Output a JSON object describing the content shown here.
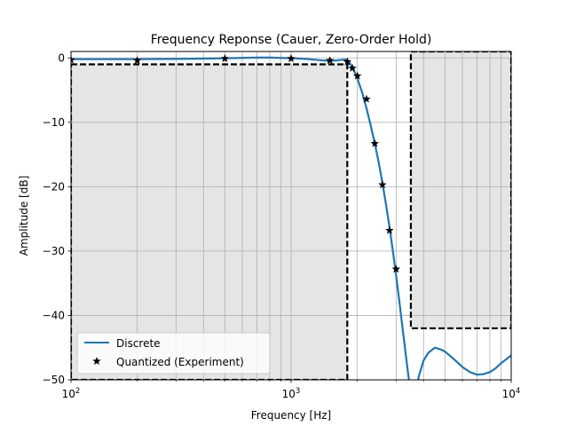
{
  "chart_data": {
    "type": "line",
    "title": "Frequency Reponse (Cauer, Zero-Order Hold)",
    "xlabel": "Frequency [Hz]",
    "ylabel": "Amplitude [dB]",
    "xscale": "log",
    "xlim": [
      100,
      10000
    ],
    "ylim": [
      -50,
      1
    ],
    "grid": true,
    "x_ticks": [
      {
        "value": 100,
        "base": "10",
        "exp": "2"
      },
      {
        "value": 1000,
        "base": "10",
        "exp": "3"
      },
      {
        "value": 10000,
        "base": "10",
        "exp": "4"
      }
    ],
    "y_ticks": [
      {
        "value": 0,
        "label": "0"
      },
      {
        "value": -10,
        "label": "−10"
      },
      {
        "value": -20,
        "label": "−20"
      },
      {
        "value": -30,
        "label": "−30"
      },
      {
        "value": -40,
        "label": "−40"
      },
      {
        "value": -50,
        "label": "−50"
      }
    ],
    "legend_position": "lower-left",
    "specification_regions": [
      {
        "x_range": [
          100,
          1800
        ],
        "y_top": -1,
        "y_bottom": -50
      },
      {
        "x_range": [
          3500,
          10000
        ],
        "y_top": 1,
        "y_bottom": -42
      }
    ],
    "series": [
      {
        "name": "Discrete",
        "style": "line",
        "color": "#1f77b4",
        "x": [
          100,
          200,
          300,
          400,
          500,
          600,
          700,
          800,
          900,
          1000,
          1100,
          1200,
          1300,
          1400,
          1500,
          1600,
          1700,
          1750,
          1800,
          1850,
          1900,
          1950,
          2000,
          2100,
          2200,
          2300,
          2400,
          2500,
          2600,
          2700,
          2800,
          2900,
          3000,
          3100,
          3200,
          3300,
          3400,
          3500,
          3600,
          3700,
          3800,
          4000,
          4200,
          4500,
          4800,
          5000,
          5500,
          6000,
          6500,
          7000,
          7500,
          8000,
          8500,
          9000,
          9500,
          10000
        ],
        "y": [
          -0.2,
          -0.2,
          -0.15,
          -0.1,
          -0.05,
          0.0,
          0.05,
          0.05,
          0.0,
          -0.05,
          -0.1,
          -0.2,
          -0.3,
          -0.4,
          -0.45,
          -0.4,
          -0.3,
          -0.25,
          -0.3,
          -0.8,
          -1.5,
          -2.3,
          -3.2,
          -5.3,
          -7.8,
          -10.5,
          -13.3,
          -16.2,
          -19.4,
          -22.8,
          -26.3,
          -30.0,
          -33.8,
          -37.7,
          -41.6,
          -45.4,
          -49.0,
          -52.0,
          -54.0,
          -52.0,
          -49.5,
          -47.0,
          -45.8,
          -45.0,
          -45.3,
          -45.6,
          -46.8,
          -48.0,
          -48.8,
          -49.2,
          -49.1,
          -48.8,
          -48.2,
          -47.4,
          -46.8,
          -46.2
        ]
      },
      {
        "name": "Quantized (Experiment)",
        "style": "marker",
        "marker": "star",
        "color": "#000000",
        "x": [
          100,
          200,
          500,
          1000,
          1500,
          1800,
          1900,
          2000,
          2200,
          2400,
          2600,
          2800,
          3000
        ],
        "y": [
          -0.3,
          -0.4,
          -0.1,
          -0.1,
          -0.4,
          -0.6,
          -1.6,
          -2.8,
          -6.4,
          -13.3,
          -19.7,
          -26.8,
          -32.8
        ]
      }
    ]
  }
}
